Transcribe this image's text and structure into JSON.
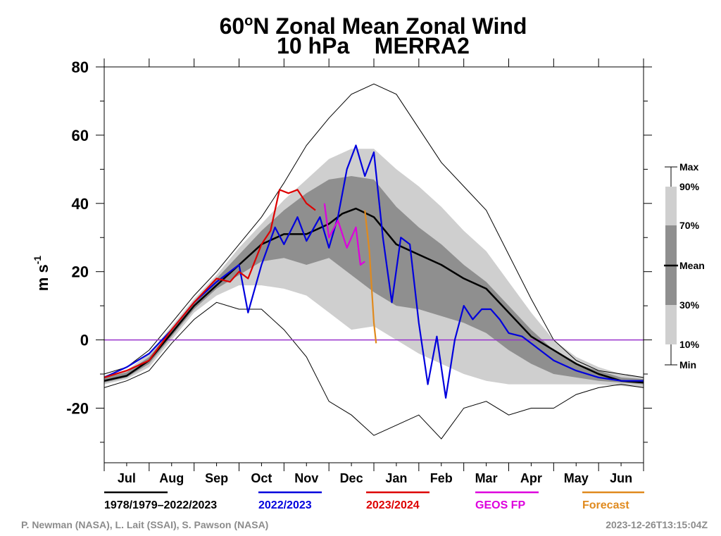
{
  "chart_data": {
    "type": "line",
    "title_prefix": "60",
    "title_degree": "o",
    "title_suffix": "N Zonal Mean Zonal Wind",
    "subtitle": "10 hPa    MERRA2",
    "ylabel_base": "m s",
    "ylabel_exp": "-1",
    "ylim": [
      -36,
      80
    ],
    "yticks": [
      -20,
      0,
      20,
      40,
      60,
      80
    ],
    "x_months": [
      "Jul",
      "Aug",
      "Sep",
      "Oct",
      "Nov",
      "Dec",
      "Jan",
      "Feb",
      "Mar",
      "Apr",
      "May",
      "Jun"
    ],
    "x_unit": "month index from 1 Jul (0 = 1 Jul, 12 = 30 Jun)",
    "grid": false,
    "zero_line_color": "#9933cc",
    "band_labels": {
      "max": "Max",
      "p90": "90%",
      "p70": "70%",
      "mean": "Mean",
      "p30": "30%",
      "p10": "10%",
      "min": "Min"
    },
    "climatology": {
      "x": [
        0,
        0.5,
        1,
        1.5,
        2,
        2.5,
        3,
        3.5,
        4,
        4.5,
        5,
        5.5,
        6,
        6.5,
        7,
        7.5,
        8,
        8.5,
        9,
        9.5,
        10,
        10.5,
        11,
        11.5,
        12
      ],
      "max": [
        -10,
        -8,
        -3,
        5,
        13,
        20,
        28,
        36,
        46,
        57,
        65,
        72,
        75,
        72,
        62,
        52,
        45,
        38,
        25,
        12,
        0,
        -6,
        -9,
        -10,
        -11
      ],
      "p90": [
        -10.5,
        -9,
        -4,
        4,
        12,
        19,
        27,
        34,
        41,
        47,
        53,
        56,
        56,
        50,
        45,
        39,
        32,
        26,
        17,
        8,
        0,
        -5,
        -8,
        -10,
        -11
      ],
      "p70": [
        -11,
        -9.5,
        -5,
        3,
        11,
        18,
        25,
        32,
        38,
        43,
        47,
        48,
        47,
        39,
        33,
        28,
        22,
        17,
        10,
        3,
        -3,
        -7,
        -9,
        -11,
        -11.5
      ],
      "mean": [
        -12,
        -10.5,
        -6,
        2,
        10,
        16,
        22,
        28,
        31,
        34,
        38,
        35,
        30,
        25,
        22,
        19,
        15,
        10,
        3,
        -2,
        -6,
        -9,
        -11,
        -12,
        -12.5
      ],
      "p30": [
        -12.5,
        -11,
        -7,
        1,
        9,
        15,
        19,
        23,
        24,
        22,
        24,
        19,
        14,
        10,
        9,
        7,
        5,
        2,
        -3,
        -7,
        -10,
        -11,
        -12,
        -12.5,
        -13
      ],
      "p10": [
        -13,
        -11.5,
        -8,
        0,
        8,
        13,
        16,
        16,
        15,
        13,
        8,
        3,
        4,
        0,
        -4,
        -7,
        -10,
        -12,
        -13,
        -13,
        -13,
        -13,
        -13,
        -13.5,
        -14
      ],
      "min": [
        -14,
        -12,
        -9,
        -1,
        6,
        11,
        9,
        9,
        3,
        -5,
        -18,
        -22,
        -28,
        -25,
        -22,
        -29,
        -20,
        -18,
        -22,
        -20,
        -20,
        -16,
        -14,
        -13,
        -14
      ]
    },
    "series": [
      {
        "name": "1978/1979–2022/2023",
        "color": "#000000",
        "x": [
          0,
          0.5,
          1,
          1.5,
          2,
          2.5,
          3,
          3.5,
          4,
          4.5,
          5,
          5.3,
          5.6,
          6,
          6.5,
          7,
          7.5,
          8,
          8.5,
          9,
          9.5,
          10,
          10.5,
          11,
          11.5,
          12
        ],
        "y": [
          -12,
          -10.5,
          -6,
          2,
          10,
          16,
          22,
          28,
          31,
          31,
          34,
          37,
          38.5,
          36,
          28,
          25,
          22,
          18,
          15,
          8,
          1,
          -3,
          -7,
          -10,
          -12,
          -12.5
        ]
      },
      {
        "name": "2022/2023",
        "color": "#0000dd",
        "x": [
          0,
          0.5,
          1,
          1.5,
          2,
          2.5,
          3,
          3.2,
          3.5,
          3.8,
          4,
          4.3,
          4.5,
          4.8,
          5,
          5.2,
          5.4,
          5.6,
          5.8,
          6,
          6.2,
          6.4,
          6.6,
          6.8,
          7,
          7.2,
          7.4,
          7.6,
          7.8,
          8,
          8.2,
          8.4,
          8.6,
          8.8,
          9,
          9.3,
          9.6,
          10,
          10.5,
          11,
          11.5,
          12
        ],
        "y": [
          -11,
          -8,
          -4,
          3,
          11,
          17,
          22,
          8,
          22,
          33,
          28,
          36,
          29,
          36,
          27,
          36,
          50,
          57,
          48,
          55,
          30,
          11,
          30,
          28,
          5,
          -13,
          1,
          -17,
          0,
          10,
          6,
          9,
          9,
          6,
          2,
          1,
          -2,
          -6,
          -9,
          -11,
          -12,
          -12
        ]
      },
      {
        "name": "2023/2024",
        "color": "#dd0000",
        "x": [
          0,
          0.5,
          1,
          1.5,
          2,
          2.5,
          2.8,
          3,
          3.2,
          3.5,
          3.7,
          3.9,
          4.1,
          4.3,
          4.5,
          4.7
        ],
        "y": [
          -11,
          -9,
          -6,
          3,
          11,
          18,
          17,
          20,
          18,
          28,
          32,
          44,
          43,
          44,
          40,
          38
        ]
      },
      {
        "name": "GEOS FP",
        "color": "#dd00dd",
        "x": [
          4.9,
          5.0,
          5.2,
          5.4,
          5.6,
          5.7,
          5.8
        ],
        "y": [
          40,
          30,
          35,
          27,
          33,
          22,
          23
        ]
      },
      {
        "name": "Forecast",
        "color": "#e08a1e",
        "x": [
          5.8,
          5.9,
          6.0,
          6.05
        ],
        "y": [
          38,
          26,
          5,
          -1
        ]
      }
    ]
  },
  "legend": [
    {
      "label": "1978/1979–2022/2023",
      "color": "#000000"
    },
    {
      "label": "2022/2023",
      "color": "#0000dd"
    },
    {
      "label": "2023/2024",
      "color": "#dd0000"
    },
    {
      "label": "GEOS FP",
      "color": "#dd00dd"
    },
    {
      "label": "Forecast",
      "color": "#e08a1e"
    }
  ],
  "credits": "P. Newman (NASA), L. Lait (SSAI), S. Pawson (NASA)",
  "timestamp": "2023-12-26T13:15:04Z"
}
